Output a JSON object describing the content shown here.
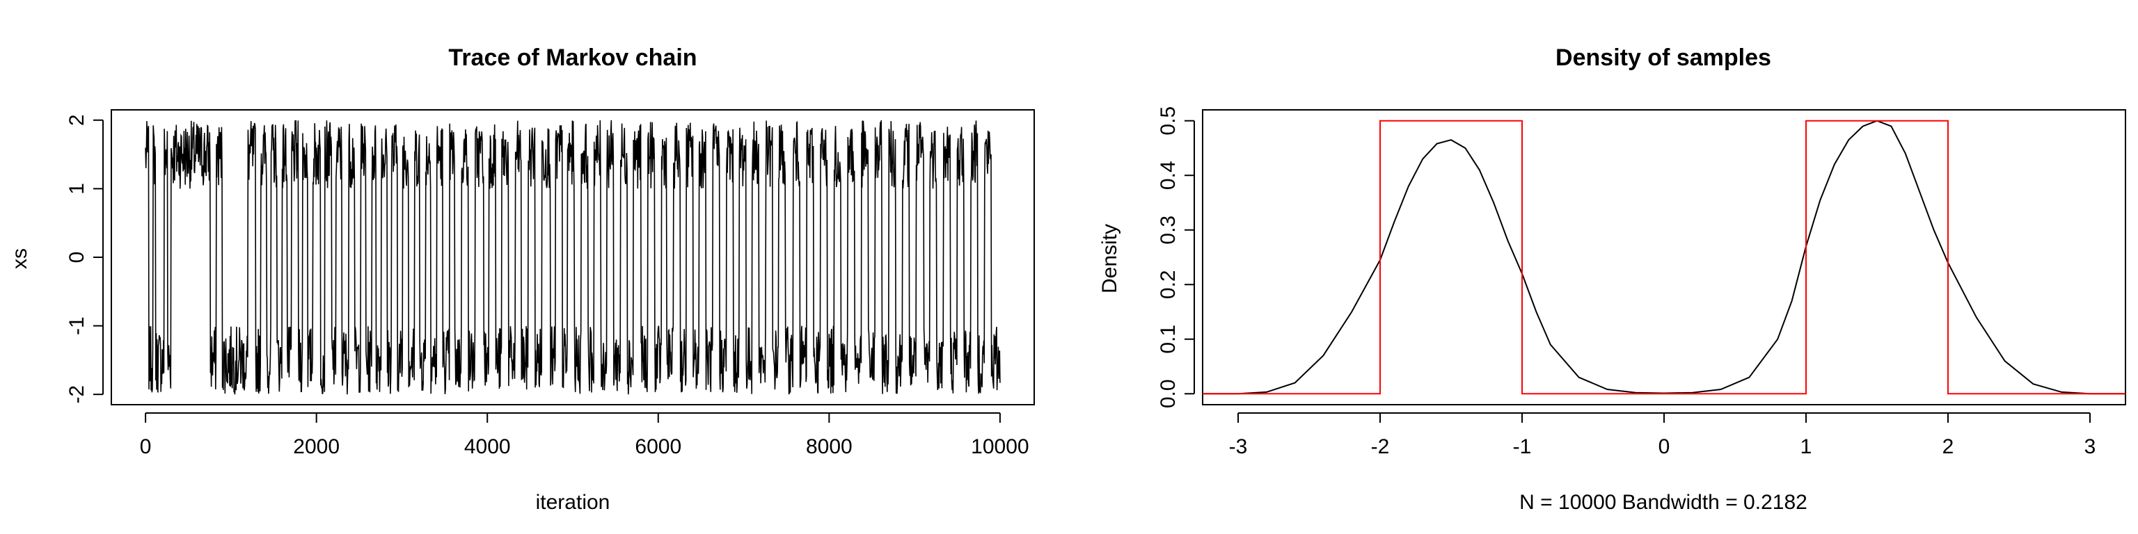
{
  "chart_data": [
    {
      "type": "line",
      "title": "Trace of Markov chain",
      "xlabel": "iteration",
      "ylabel": "xs",
      "xlim": [
        -400,
        10400
      ],
      "ylim": [
        -2.15,
        2.15
      ],
      "xticks": [
        0,
        2000,
        4000,
        6000,
        8000,
        10000
      ],
      "xtick_labels": [
        "0",
        "2000",
        "4000",
        "6000",
        "8000",
        "10000"
      ],
      "yticks": [
        -2,
        -1,
        0,
        1,
        2
      ],
      "ytick_labels": [
        "-2",
        "-1",
        "0",
        "1",
        "2"
      ],
      "grid": false,
      "series": [
        {
          "color": "#000000",
          "n_iterations": 10000,
          "states": [
            1,
            -1
          ],
          "switch_iterations": [
            40,
            90,
            120,
            220,
            260,
            300,
            760,
            830,
            900,
            1200,
            1290,
            1350,
            1420,
            1470,
            1540,
            1600,
            1660,
            1710,
            1790,
            1840,
            1900,
            1960,
            2050,
            2100,
            2180,
            2230,
            2300,
            2380,
            2450,
            2520,
            2580,
            2650,
            2700,
            2760,
            2830,
            2880,
            2950,
            3010,
            3080,
            3150,
            3210,
            3280,
            3340,
            3410,
            3480,
            3560,
            3620,
            3700,
            3780,
            3860,
            3960,
            4020,
            4100,
            4170,
            4250,
            4330,
            4400,
            4480,
            4560,
            4640,
            4740,
            4800,
            4880,
            4940,
            5020,
            5100,
            5180,
            5250,
            5330,
            5400,
            5480,
            5560,
            5640,
            5710,
            5800,
            5880,
            5960,
            6040,
            6100,
            6180,
            6260,
            6330,
            6410,
            6480,
            6560,
            6640,
            6720,
            6800,
            6880,
            6950,
            7030,
            7100,
            7180,
            7260,
            7340,
            7410,
            7490,
            7580,
            7660,
            7740,
            7820,
            7900,
            7980,
            8060,
            8140,
            8220,
            8300,
            8380,
            8460,
            8540,
            8620,
            8700,
            8780,
            8860,
            8940,
            9020,
            9110,
            9180,
            9260,
            9340,
            9420,
            9500,
            9580,
            9660,
            9740,
            9820,
            9900
          ],
          "high_mode_range": [
            1.0,
            2.0
          ],
          "low_mode_range": [
            -2.0,
            -1.0
          ]
        }
      ]
    },
    {
      "type": "line",
      "title": "Density of samples",
      "xlabel": "N = 10000   Bandwidth = 0.2182",
      "ylabel": "Density",
      "xlim": [
        -3.25,
        3.25
      ],
      "ylim": [
        -0.02,
        0.52
      ],
      "xticks": [
        -3,
        -2,
        -1,
        0,
        1,
        2,
        3
      ],
      "xtick_labels": [
        "-3",
        "-2",
        "-1",
        "0",
        "1",
        "2",
        "3"
      ],
      "yticks": [
        0.0,
        0.1,
        0.2,
        0.3,
        0.4,
        0.5
      ],
      "ytick_labels": [
        "0.0",
        "0.1",
        "0.2",
        "0.3",
        "0.4",
        "0.5"
      ],
      "grid": false,
      "series": [
        {
          "color": "#000000",
          "x": [
            -3.25,
            -3.0,
            -2.8,
            -2.6,
            -2.4,
            -2.2,
            -2.0,
            -1.9,
            -1.8,
            -1.7,
            -1.6,
            -1.5,
            -1.4,
            -1.3,
            -1.2,
            -1.1,
            -1.0,
            -0.9,
            -0.8,
            -0.6,
            -0.4,
            -0.2,
            0.0,
            0.2,
            0.4,
            0.6,
            0.8,
            0.9,
            1.0,
            1.1,
            1.2,
            1.3,
            1.4,
            1.5,
            1.6,
            1.7,
            1.8,
            1.9,
            2.0,
            2.2,
            2.4,
            2.6,
            2.8,
            3.0,
            3.25
          ],
          "y": [
            0.0,
            0.0,
            0.003,
            0.02,
            0.07,
            0.15,
            0.245,
            0.315,
            0.38,
            0.43,
            0.458,
            0.465,
            0.45,
            0.41,
            0.35,
            0.28,
            0.22,
            0.15,
            0.09,
            0.03,
            0.008,
            0.002,
            0.001,
            0.002,
            0.008,
            0.03,
            0.1,
            0.17,
            0.27,
            0.355,
            0.42,
            0.465,
            0.49,
            0.5,
            0.49,
            0.44,
            0.37,
            0.3,
            0.24,
            0.14,
            0.06,
            0.018,
            0.003,
            0.0,
            0.0
          ]
        },
        {
          "color": "#ff0000",
          "x": [
            -3.25,
            -2.0,
            -2.0,
            -1.0,
            -1.0,
            1.0,
            1.0,
            2.0,
            2.0,
            3.25
          ],
          "y": [
            0.0,
            0.0,
            0.5,
            0.5,
            0.0,
            0.0,
            0.5,
            0.5,
            0.0,
            0.0
          ]
        }
      ]
    }
  ]
}
